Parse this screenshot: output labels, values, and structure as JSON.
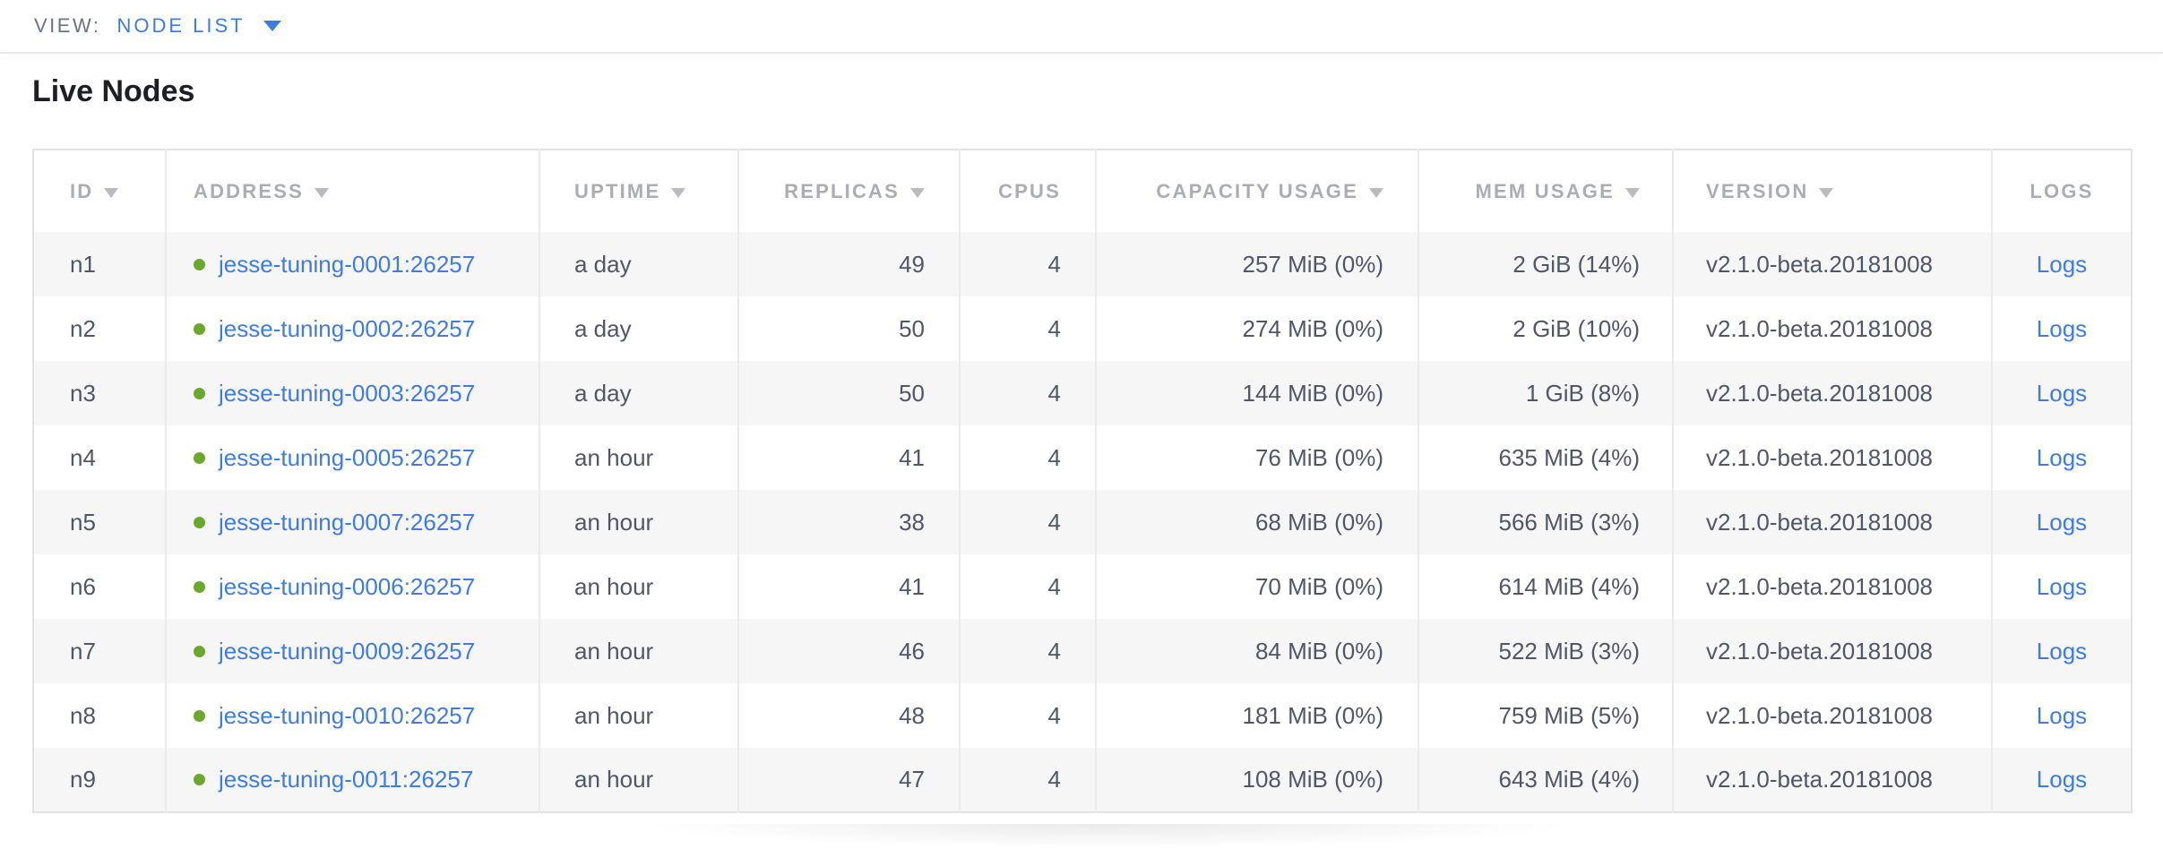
{
  "view_bar": {
    "label": "VIEW:",
    "selected": "NODE LIST"
  },
  "page": {
    "title": "Live Nodes"
  },
  "table": {
    "columns": [
      {
        "label": "ID",
        "sortable": true
      },
      {
        "label": "ADDRESS",
        "sortable": true
      },
      {
        "label": "UPTIME",
        "sortable": true
      },
      {
        "label": "REPLICAS",
        "sortable": true
      },
      {
        "label": "CPUS",
        "sortable": false
      },
      {
        "label": "CAPACITY USAGE",
        "sortable": true
      },
      {
        "label": "MEM USAGE",
        "sortable": true
      },
      {
        "label": "VERSION",
        "sortable": true
      },
      {
        "label": "LOGS",
        "sortable": false
      }
    ],
    "rows": [
      {
        "id": "n1",
        "status": "healthy",
        "address": "jesse-tuning-0001:26257",
        "uptime": "a day",
        "replicas": "49",
        "cpus": "4",
        "capacity": "257 MiB (0%)",
        "mem": "2 GiB (14%)",
        "version": "v2.1.0-beta.20181008",
        "logs": "Logs"
      },
      {
        "id": "n2",
        "status": "healthy",
        "address": "jesse-tuning-0002:26257",
        "uptime": "a day",
        "replicas": "50",
        "cpus": "4",
        "capacity": "274 MiB (0%)",
        "mem": "2 GiB (10%)",
        "version": "v2.1.0-beta.20181008",
        "logs": "Logs"
      },
      {
        "id": "n3",
        "status": "healthy",
        "address": "jesse-tuning-0003:26257",
        "uptime": "a day",
        "replicas": "50",
        "cpus": "4",
        "capacity": "144 MiB (0%)",
        "mem": "1 GiB (8%)",
        "version": "v2.1.0-beta.20181008",
        "logs": "Logs"
      },
      {
        "id": "n4",
        "status": "healthy",
        "address": "jesse-tuning-0005:26257",
        "uptime": "an hour",
        "replicas": "41",
        "cpus": "4",
        "capacity": "76 MiB (0%)",
        "mem": "635 MiB (4%)",
        "version": "v2.1.0-beta.20181008",
        "logs": "Logs"
      },
      {
        "id": "n5",
        "status": "healthy",
        "address": "jesse-tuning-0007:26257",
        "uptime": "an hour",
        "replicas": "38",
        "cpus": "4",
        "capacity": "68 MiB (0%)",
        "mem": "566 MiB (3%)",
        "version": "v2.1.0-beta.20181008",
        "logs": "Logs"
      },
      {
        "id": "n6",
        "status": "healthy",
        "address": "jesse-tuning-0006:26257",
        "uptime": "an hour",
        "replicas": "41",
        "cpus": "4",
        "capacity": "70 MiB (0%)",
        "mem": "614 MiB (4%)",
        "version": "v2.1.0-beta.20181008",
        "logs": "Logs"
      },
      {
        "id": "n7",
        "status": "healthy",
        "address": "jesse-tuning-0009:26257",
        "uptime": "an hour",
        "replicas": "46",
        "cpus": "4",
        "capacity": "84 MiB (0%)",
        "mem": "522 MiB (3%)",
        "version": "v2.1.0-beta.20181008",
        "logs": "Logs"
      },
      {
        "id": "n8",
        "status": "healthy",
        "address": "jesse-tuning-0010:26257",
        "uptime": "an hour",
        "replicas": "48",
        "cpus": "4",
        "capacity": "181 MiB (0%)",
        "mem": "759 MiB (5%)",
        "version": "v2.1.0-beta.20181008",
        "logs": "Logs"
      },
      {
        "id": "n9",
        "status": "healthy",
        "address": "jesse-tuning-0011:26257",
        "uptime": "an hour",
        "replicas": "47",
        "cpus": "4",
        "capacity": "108 MiB (0%)",
        "mem": "643 MiB (4%)",
        "version": "v2.1.0-beta.20181008",
        "logs": "Logs"
      }
    ]
  },
  "colors": {
    "link_blue": "#3e7ce0",
    "healthy_dot_green": "#6ca72f",
    "header_gray": "#abadb5",
    "cell_text": "#4f5668",
    "row_stripe": "#f6f6f7"
  }
}
